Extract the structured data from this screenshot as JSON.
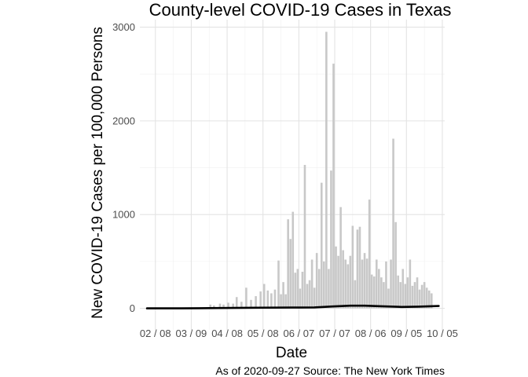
{
  "chart_data": {
    "type": "bar",
    "title": "County-level COVID-19 Cases in Texas",
    "xlabel": "Date",
    "ylabel": "New COVID-19 Cases per 100,000 Persons",
    "caption": "As of 2020-09-27 Source: The New York Times",
    "x_ticks": [
      "02 / 08",
      "03 / 09",
      "04 / 08",
      "05 / 08",
      "06 / 07",
      "07 / 07",
      "08 / 06",
      "09 / 05",
      "10 / 05"
    ],
    "x_tick_dates": [
      "2020-02-08",
      "2020-03-09",
      "2020-04-08",
      "2020-05-08",
      "2020-06-07",
      "2020-07-07",
      "2020-08-06",
      "2020-09-05",
      "2020-10-05"
    ],
    "y_ticks": [
      0,
      1000,
      2000,
      3000
    ],
    "xlim": [
      "2020-01-26",
      "2020-10-07"
    ],
    "ylim": [
      -230,
      3080
    ],
    "grid": true,
    "bar_color": "#c8c8c8",
    "line_color": "#000000",
    "series": [
      {
        "kind": "bars",
        "dates": [
          "2020-03-25",
          "2020-03-28",
          "2020-04-02",
          "2020-04-05",
          "2020-04-09",
          "2020-04-13",
          "2020-04-16",
          "2020-04-20",
          "2020-04-24",
          "2020-04-28",
          "2020-05-02",
          "2020-05-06",
          "2020-05-09",
          "2020-05-12",
          "2020-05-15",
          "2020-05-18",
          "2020-05-21",
          "2020-05-23",
          "2020-05-25",
          "2020-05-27",
          "2020-05-29",
          "2020-05-31",
          "2020-06-02",
          "2020-06-04",
          "2020-06-06",
          "2020-06-08",
          "2020-06-10",
          "2020-06-12",
          "2020-06-14",
          "2020-06-16",
          "2020-06-18",
          "2020-06-20",
          "2020-06-22",
          "2020-06-24",
          "2020-06-26",
          "2020-06-28",
          "2020-06-30",
          "2020-07-02",
          "2020-07-04",
          "2020-07-06",
          "2020-07-08",
          "2020-07-10",
          "2020-07-12",
          "2020-07-14",
          "2020-07-16",
          "2020-07-18",
          "2020-07-20",
          "2020-07-22",
          "2020-07-24",
          "2020-07-26",
          "2020-07-28",
          "2020-07-30",
          "2020-08-01",
          "2020-08-03",
          "2020-08-05",
          "2020-08-07",
          "2020-08-09",
          "2020-08-11",
          "2020-08-13",
          "2020-08-15",
          "2020-08-17",
          "2020-08-19",
          "2020-08-21",
          "2020-08-23",
          "2020-08-25",
          "2020-08-27",
          "2020-08-29",
          "2020-08-31",
          "2020-09-02",
          "2020-09-04",
          "2020-09-06",
          "2020-09-08",
          "2020-09-10",
          "2020-09-12",
          "2020-09-14",
          "2020-09-16",
          "2020-09-18",
          "2020-09-20",
          "2020-09-22",
          "2020-09-24",
          "2020-09-26"
        ],
        "values": [
          40,
          30,
          50,
          40,
          60,
          50,
          120,
          70,
          220,
          90,
          130,
          180,
          260,
          190,
          160,
          200,
          510,
          150,
          280,
          150,
          950,
          740,
          1030,
          380,
          420,
          210,
          390,
          1530,
          260,
          300,
          520,
          220,
          590,
          420,
          1340,
          500,
          2950,
          420,
          1470,
          2610,
          660,
          560,
          1080,
          620,
          520,
          470,
          560,
          880,
          300,
          840,
          870,
          520,
          590,
          530,
          1160,
          360,
          340,
          520,
          420,
          330,
          280,
          500,
          210,
          520,
          1810,
          920,
          350,
          280,
          420,
          260,
          330,
          520,
          240,
          280,
          330,
          200,
          250,
          280,
          220,
          190,
          160
        ]
      },
      {
        "kind": "trend",
        "dates": [
          "2020-02-01",
          "2020-03-01",
          "2020-04-01",
          "2020-05-01",
          "2020-06-01",
          "2020-06-20",
          "2020-07-05",
          "2020-07-20",
          "2020-08-01",
          "2020-08-15",
          "2020-09-01",
          "2020-09-15",
          "2020-10-02"
        ],
        "values": [
          0,
          0,
          3,
          6,
          8,
          10,
          20,
          28,
          28,
          22,
          15,
          18,
          25
        ]
      }
    ]
  }
}
